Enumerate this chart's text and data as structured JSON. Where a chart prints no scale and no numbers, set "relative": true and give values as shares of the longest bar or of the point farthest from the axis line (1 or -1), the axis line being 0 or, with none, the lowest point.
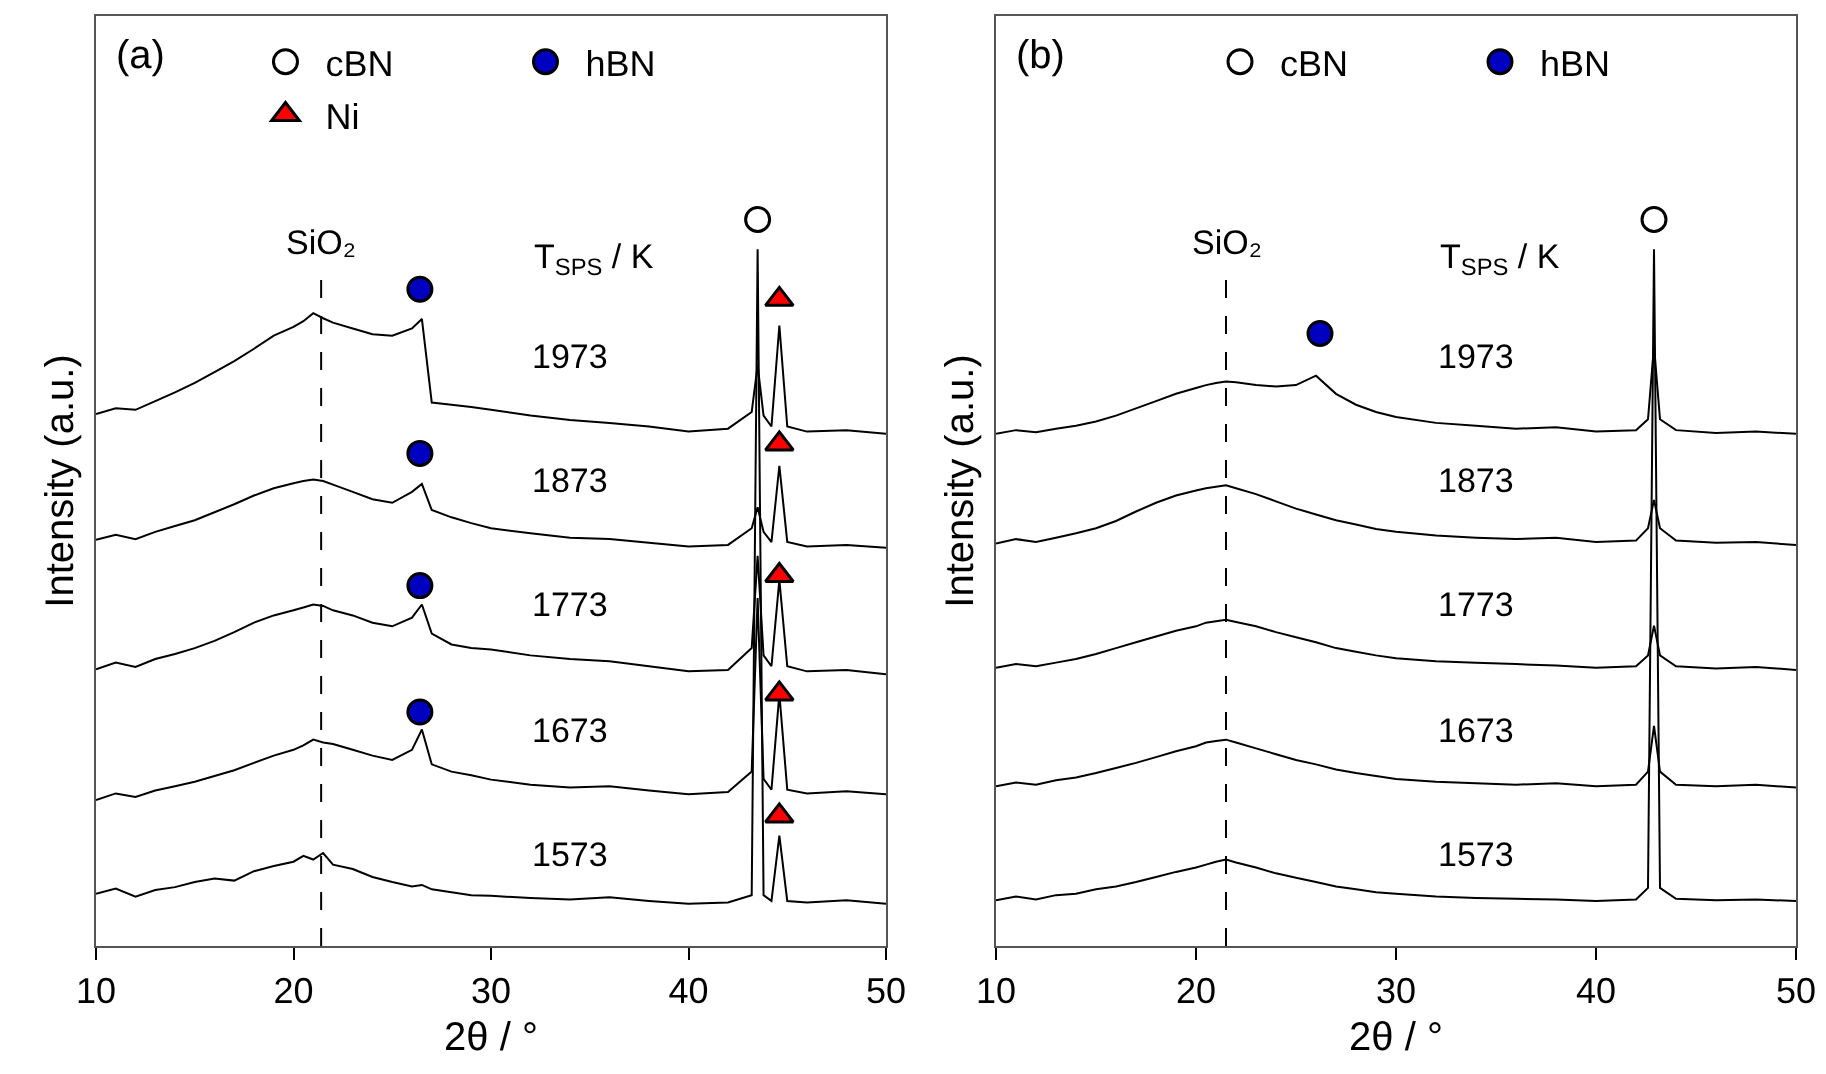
{
  "chart_data": [
    {
      "type": "line",
      "relative": true,
      "xlabel": "2θ / °",
      "ylabel": "Intensity (a.u.)",
      "xlim": [
        10,
        50
      ],
      "xticks": [
        10,
        20,
        30,
        40,
        50
      ],
      "grid": false,
      "legend": "top",
      "annotations": [
        "(a)",
        "T$_{SPS}$ / K",
        "1973",
        "1873",
        "1773",
        "1673",
        "1573"
      ],
      "ref_lines": [
        {
          "axis": "x",
          "value": 21.4,
          "label": "SiO₂",
          "line_style": "dashed",
          "color": "#000000"
        }
      ],
      "series": [
        {
          "color": "#000000",
          "x": [
            10,
            11,
            12,
            13,
            14,
            15,
            16,
            17,
            18,
            19,
            20,
            20.5,
            21,
            21.5,
            22,
            23,
            24,
            25,
            26,
            26.5,
            27,
            28,
            29,
            30,
            32,
            34,
            36,
            38,
            40,
            42,
            43.2,
            43.5,
            43.8,
            44.2,
            44.6,
            45.0,
            46,
            48,
            50
          ],
          "values": [
            0.072,
            0.079,
            0.068,
            0.077,
            0.081,
            0.088,
            0.093,
            0.09,
            0.103,
            0.11,
            0.116,
            0.124,
            0.119,
            0.128,
            0.112,
            0.106,
            0.095,
            0.088,
            0.082,
            0.084,
            0.078,
            0.074,
            0.07,
            0.069,
            0.066,
            0.064,
            0.067,
            0.062,
            0.058,
            0.06,
            0.07,
            0.959,
            0.07,
            0.062,
            0.152,
            0.062,
            0.06,
            0.063,
            0.058
          ]
        },
        {
          "color": "#000000",
          "x": [
            10,
            11,
            12,
            13,
            14,
            15,
            16,
            17,
            18,
            19,
            20,
            20.5,
            21,
            21.5,
            22,
            23,
            24,
            25,
            26,
            26.5,
            27,
            28,
            29,
            30,
            32,
            34,
            36,
            38,
            40,
            42,
            43.2,
            43.5,
            43.8,
            44.2,
            44.6,
            45.0,
            46,
            48,
            50
          ],
          "values": [
            0.201,
            0.21,
            0.205,
            0.214,
            0.22,
            0.226,
            0.234,
            0.242,
            0.252,
            0.262,
            0.27,
            0.276,
            0.284,
            0.28,
            0.278,
            0.27,
            0.262,
            0.256,
            0.27,
            0.298,
            0.25,
            0.24,
            0.235,
            0.229,
            0.222,
            0.218,
            0.22,
            0.214,
            0.209,
            0.212,
            0.24,
            0.479,
            0.23,
            0.215,
            0.347,
            0.215,
            0.21,
            0.213,
            0.209
          ]
        },
        {
          "color": "#000000",
          "x": [
            10,
            11,
            12,
            13,
            14,
            15,
            16,
            17,
            18,
            19,
            20,
            20.5,
            21,
            21.5,
            22,
            23,
            24,
            25,
            26,
            26.5,
            27,
            28,
            29,
            30,
            32,
            34,
            36,
            38,
            40,
            42,
            43.2,
            43.5,
            43.8,
            44.2,
            44.6,
            45.0,
            46,
            48,
            50
          ],
          "values": [
            0.381,
            0.39,
            0.384,
            0.395,
            0.402,
            0.41,
            0.42,
            0.432,
            0.445,
            0.455,
            0.462,
            0.466,
            0.47,
            0.468,
            0.462,
            0.455,
            0.445,
            0.44,
            0.452,
            0.47,
            0.43,
            0.415,
            0.41,
            0.408,
            0.4,
            0.395,
            0.392,
            0.385,
            0.378,
            0.38,
            0.41,
            0.537,
            0.4,
            0.385,
            0.504,
            0.385,
            0.378,
            0.38,
            0.374
          ]
        },
        {
          "color": "#000000",
          "x": [
            10,
            11,
            12,
            13,
            14,
            15,
            16,
            17,
            18,
            19,
            20,
            20.5,
            21,
            21.5,
            22,
            23,
            24,
            25,
            26,
            26.5,
            27,
            28,
            29,
            30,
            32,
            34,
            36,
            38,
            40,
            42,
            43.2,
            43.5,
            43.8,
            44.2,
            44.6,
            45.0,
            46,
            48,
            50
          ],
          "values": [
            0.559,
            0.566,
            0.56,
            0.57,
            0.578,
            0.586,
            0.597,
            0.608,
            0.62,
            0.63,
            0.637,
            0.64,
            0.642,
            0.64,
            0.635,
            0.625,
            0.615,
            0.61,
            0.625,
            0.636,
            0.6,
            0.59,
            0.582,
            0.575,
            0.568,
            0.562,
            0.56,
            0.555,
            0.55,
            0.552,
            0.575,
            0.604,
            0.57,
            0.556,
            0.661,
            0.556,
            0.55,
            0.552,
            0.548
          ]
        },
        {
          "color": "#000000",
          "x": [
            10,
            11,
            12,
            13,
            14,
            15,
            16,
            17,
            18,
            19,
            20,
            20.5,
            21,
            21.5,
            22,
            23,
            24,
            25,
            26,
            26.5,
            27,
            28,
            29,
            30,
            32,
            34,
            36,
            38,
            40,
            42,
            43.2,
            43.5,
            43.8,
            44.2,
            44.6,
            45.0,
            46,
            48,
            50
          ],
          "values": [
            0.732,
            0.74,
            0.738,
            0.75,
            0.762,
            0.775,
            0.79,
            0.805,
            0.822,
            0.84,
            0.852,
            0.86,
            0.871,
            0.864,
            0.858,
            0.85,
            0.842,
            0.84,
            0.85,
            0.863,
            0.748,
            0.745,
            0.742,
            0.738,
            0.73,
            0.724,
            0.72,
            0.715,
            0.708,
            0.712,
            0.735,
            0.799,
            0.73,
            0.715,
            0.854,
            0.715,
            0.708,
            0.71,
            0.705
          ]
        },
        {
          "type": "scatter",
          "name": "cBN",
          "marker": "circle",
          "color": "#ffffff",
          "x": [
            43.5
          ],
          "values": [
            1.0
          ]
        },
        {
          "type": "scatter",
          "name": "hBN",
          "marker": "circle",
          "color": "#0000c0",
          "x": [
            26.4,
            26.4,
            26.4,
            26.4
          ],
          "values": [
            0.904,
            0.678,
            0.496,
            0.322
          ]
        },
        {
          "type": "scatter",
          "name": "Ni",
          "marker": "triangle",
          "color": "#ff0000",
          "x": [
            44.6,
            44.6,
            44.6,
            44.6,
            44.6
          ],
          "values": [
            0.89,
            0.691,
            0.51,
            0.347,
            0.179
          ]
        }
      ]
    },
    {
      "type": "line",
      "relative": true,
      "xlabel": "2θ / °",
      "ylabel": "Intensity (a.u.)",
      "xlim": [
        10,
        50
      ],
      "xticks": [
        10,
        20,
        30,
        40,
        50
      ],
      "grid": false,
      "legend": "top",
      "annotations": [
        "(b)",
        "T$_{SPS}$ / K",
        "1973",
        "1873",
        "1773",
        "1673",
        "1573"
      ],
      "ref_lines": [
        {
          "axis": "x",
          "value": 21.5,
          "label": "SiO₂",
          "line_style": "dashed",
          "color": "#000000"
        }
      ],
      "series": [
        {
          "color": "#000000",
          "x": [
            10,
            11,
            12,
            13,
            14,
            15,
            16,
            17,
            18,
            19,
            20,
            20.5,
            21,
            21.5,
            22,
            23,
            24,
            25,
            26,
            27,
            28,
            29,
            30,
            32,
            34,
            36,
            38,
            40,
            42,
            42.6,
            42.9,
            43.2,
            44,
            46,
            48,
            50
          ],
          "values": [
            0.063,
            0.068,
            0.064,
            0.07,
            0.072,
            0.078,
            0.082,
            0.088,
            0.095,
            0.102,
            0.108,
            0.112,
            0.116,
            0.119,
            0.115,
            0.108,
            0.1,
            0.094,
            0.088,
            0.082,
            0.078,
            0.074,
            0.072,
            0.068,
            0.066,
            0.065,
            0.064,
            0.062,
            0.064,
            0.08,
            0.959,
            0.08,
            0.065,
            0.063,
            0.064,
            0.062
          ]
        },
        {
          "color": "#000000",
          "x": [
            10,
            11,
            12,
            13,
            14,
            15,
            16,
            17,
            18,
            19,
            20,
            20.5,
            21,
            21.5,
            22,
            23,
            24,
            25,
            26,
            27,
            28,
            29,
            30,
            32,
            34,
            36,
            38,
            40,
            42,
            42.6,
            42.9,
            43.2,
            44,
            46,
            48,
            50
          ],
          "values": [
            0.22,
            0.225,
            0.222,
            0.228,
            0.232,
            0.238,
            0.245,
            0.252,
            0.26,
            0.268,
            0.275,
            0.28,
            0.282,
            0.284,
            0.28,
            0.272,
            0.264,
            0.256,
            0.25,
            0.243,
            0.238,
            0.234,
            0.23,
            0.226,
            0.224,
            0.222,
            0.224,
            0.22,
            0.222,
            0.24,
            0.303,
            0.24,
            0.222,
            0.22,
            0.222,
            0.218
          ]
        },
        {
          "color": "#000000",
          "x": [
            10,
            11,
            12,
            13,
            14,
            15,
            16,
            17,
            18,
            19,
            20,
            20.5,
            21,
            21.5,
            22,
            23,
            24,
            25,
            26,
            27,
            28,
            29,
            30,
            32,
            34,
            36,
            38,
            40,
            42,
            42.6,
            42.9,
            43.2,
            44,
            46,
            48,
            50
          ],
          "values": [
            0.383,
            0.388,
            0.385,
            0.39,
            0.395,
            0.402,
            0.41,
            0.418,
            0.426,
            0.434,
            0.44,
            0.445,
            0.447,
            0.449,
            0.446,
            0.44,
            0.432,
            0.425,
            0.418,
            0.41,
            0.405,
            0.4,
            0.396,
            0.392,
            0.39,
            0.388,
            0.386,
            0.383,
            0.385,
            0.4,
            0.441,
            0.4,
            0.385,
            0.382,
            0.384,
            0.38
          ]
        },
        {
          "color": "#000000",
          "x": [
            10,
            11,
            12,
            13,
            14,
            15,
            16,
            17,
            18,
            19,
            20,
            20.5,
            21,
            21.5,
            22,
            23,
            24,
            25,
            26,
            27,
            28,
            29,
            30,
            32,
            34,
            36,
            38,
            40,
            42,
            42.6,
            42.9,
            43.2,
            44,
            46,
            48,
            50
          ],
          "values": [
            0.554,
            0.56,
            0.556,
            0.562,
            0.568,
            0.575,
            0.585,
            0.598,
            0.61,
            0.62,
            0.627,
            0.63,
            0.632,
            0.634,
            0.63,
            0.622,
            0.612,
            0.602,
            0.594,
            0.586,
            0.58,
            0.574,
            0.57,
            0.565,
            0.562,
            0.56,
            0.562,
            0.556,
            0.558,
            0.575,
            0.614,
            0.575,
            0.558,
            0.555,
            0.556,
            0.552
          ]
        },
        {
          "color": "#000000",
          "x": [
            10,
            11,
            12,
            13,
            14,
            15,
            16,
            17,
            18,
            19,
            20,
            20.5,
            21,
            21.5,
            22,
            23,
            24,
            25,
            26,
            27,
            28,
            29,
            30,
            32,
            34,
            36,
            38,
            40,
            42,
            42.6,
            42.9,
            43.2,
            44,
            46,
            48,
            50
          ],
          "values": [
            0.705,
            0.71,
            0.707,
            0.712,
            0.716,
            0.722,
            0.73,
            0.74,
            0.75,
            0.76,
            0.768,
            0.772,
            0.775,
            0.777,
            0.776,
            0.772,
            0.77,
            0.772,
            0.785,
            0.76,
            0.745,
            0.735,
            0.728,
            0.72,
            0.716,
            0.712,
            0.714,
            0.708,
            0.71,
            0.725,
            0.826,
            0.725,
            0.71,
            0.706,
            0.708,
            0.705
          ]
        },
        {
          "type": "scatter",
          "name": "cBN",
          "marker": "circle",
          "color": "#ffffff",
          "x": [
            42.9
          ],
          "values": [
            1.0
          ]
        },
        {
          "type": "scatter",
          "name": "hBN",
          "marker": "circle",
          "color": "#0000c0",
          "x": [
            26.2
          ],
          "values": [
            0.843
          ]
        }
      ]
    }
  ]
}
